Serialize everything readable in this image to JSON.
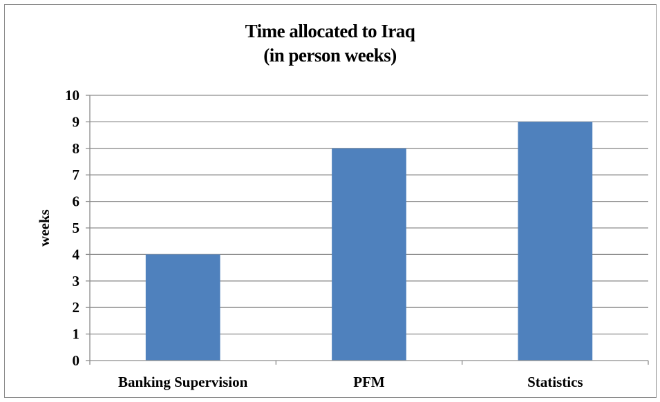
{
  "chart_data": {
    "type": "bar",
    "title": [
      "Time allocated to Iraq",
      "(in person weeks)"
    ],
    "ylabel": "weeks",
    "xlabel": "",
    "categories": [
      "Banking Supervision",
      "PFM",
      "Statistics"
    ],
    "values": [
      4,
      8,
      9
    ],
    "ylim": [
      0,
      10
    ],
    "yticks": [
      0,
      1,
      2,
      3,
      4,
      5,
      6,
      7,
      8,
      9,
      10
    ],
    "grid": true,
    "legend": "none",
    "bar_color": "#4F81BD"
  }
}
